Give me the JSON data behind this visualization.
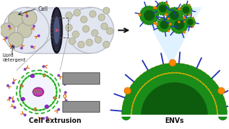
{
  "bg_color": "#ffffff",
  "title_left": "Cell extrusion",
  "title_right": "ENVs",
  "label_cell": "Cell",
  "label_lipid": "Lipid\ndetergent",
  "tube_color": "#e2e6f0",
  "tube_border": "#b8bcc8",
  "cell_fill": "#c8c8b0",
  "cell_border": "#a0a090",
  "membrane_green": "#22aa22",
  "env_green_dark": "#1a8c1a",
  "env_green_mid": "#33bb33",
  "env_yellow": "#ccaa00",
  "env_yellow2": "#ddbb11",
  "peg_blue": "#2233bb",
  "lipid_orange": "#dd6600",
  "lipid_purple": "#8844bb",
  "nucleus_fill": "#bb33bb",
  "nucleus_border": "#882288",
  "filter_fill": "#909090",
  "filter_dark": "#606060",
  "orange_dot": "#ff8800",
  "arrow_black": "#111111",
  "cone_blue": "#c8e8ff",
  "zoom_line": "#999999",
  "dashed_box": "#555555"
}
